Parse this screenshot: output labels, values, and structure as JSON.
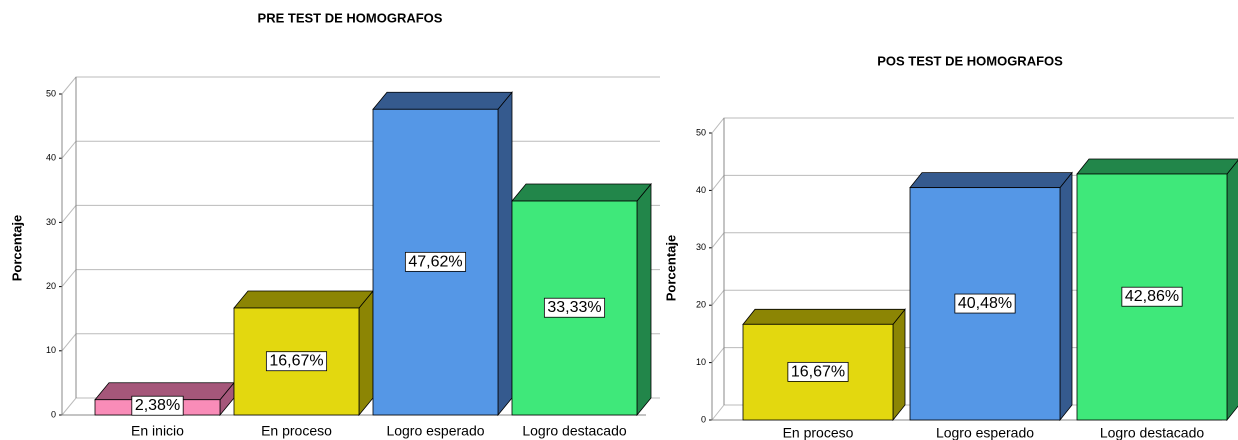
{
  "chart_data": [
    {
      "type": "bar3d",
      "title": "PRE TEST DE HOMOGRAFOS",
      "y_label": "Porcentaje",
      "categories": [
        "En inicio",
        "En proceso",
        "Logro esperado",
        "Logro destacado"
      ],
      "values": [
        2.38,
        16.67,
        47.62,
        33.33
      ],
      "value_labels": [
        "2,38%",
        "16,67%",
        "47,62%",
        "33,33%"
      ],
      "colors": [
        "#f98cb8",
        "#e3d80f",
        "#5597e6",
        "#3fe87a"
      ],
      "top_colors": [
        "#a5577a",
        "#8c8504",
        "#355a8e",
        "#22864a"
      ],
      "ylim": [
        0,
        50
      ],
      "yticks": [
        0,
        10,
        20,
        30,
        40,
        50
      ],
      "grid": true
    },
    {
      "type": "bar3d",
      "title": "POS TEST DE HOMOGRAFOS",
      "y_label": "Porcentaje",
      "categories": [
        "En proceso",
        "Logro esperado",
        "Logro destacado"
      ],
      "values": [
        16.67,
        40.48,
        42.86
      ],
      "value_labels": [
        "16,67%",
        "40,48%",
        "42,86%"
      ],
      "colors": [
        "#e3d80f",
        "#5597e6",
        "#3fe87a"
      ],
      "top_colors": [
        "#8c8504",
        "#355a8e",
        "#22864a"
      ],
      "ylim": [
        0,
        50
      ],
      "yticks": [
        0,
        10,
        20,
        30,
        40,
        50
      ],
      "grid": true
    }
  ]
}
